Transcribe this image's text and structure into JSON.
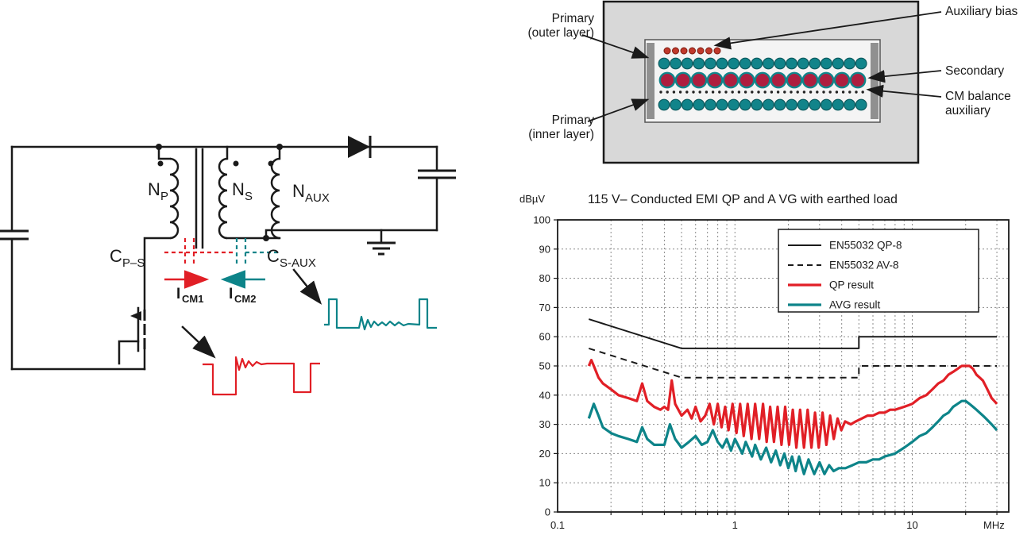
{
  "colors": {
    "red": "#e11f26",
    "teal": "#0d8489",
    "black": "#1a1a1a"
  },
  "circuit": {
    "labels": {
      "np_main": "N",
      "np_sub": "P",
      "ns_main": "N",
      "ns_sub": "S",
      "naux_main": "N",
      "naux_sub": "AUX",
      "cps_main": "C",
      "cps_sub": "P–S",
      "csaux_main": "C",
      "csaux_sub": "S-AUX",
      "icm1_main": "I",
      "icm1_sub": "CM1",
      "icm2_main": "I",
      "icm2_sub": "CM2"
    }
  },
  "winding_diagram": {
    "labels": {
      "primary_outer_1": "Primary",
      "primary_outer_2": "(outer layer)",
      "aux_bias": "Auxiliary bias",
      "secondary": "Secondary",
      "cm_balance_1": "CM balance",
      "cm_balance_2": "auxiliary",
      "primary_inner_1": "Primary",
      "primary_inner_2": "(inner layer)"
    },
    "rows": [
      {
        "name": "aux-bias-winding",
        "y": 64,
        "x0": 210,
        "gap": 10.5,
        "count": 7,
        "r": 4,
        "fill": "#c0392b",
        "stroke": "#7c1d12",
        "stroke_width": 1
      },
      {
        "name": "primary-outer-winding",
        "y": 80,
        "x0": 206,
        "gap": 14.6,
        "count": 18,
        "r": 6.8,
        "fill": "#11848a",
        "stroke": "#0b5a5e",
        "stroke_width": 1.2
      },
      {
        "name": "secondary-winding",
        "y": 101,
        "x0": 210,
        "gap": 20,
        "count": 13,
        "r": 9.2,
        "fill": "#ae1e3f",
        "stroke": "#11848a",
        "stroke_width": 2.4
      },
      {
        "name": "cm-balance-winding",
        "y": 116,
        "x0": 202,
        "gap": 8.2,
        "count": 32,
        "r": 1.7,
        "fill": "#222222",
        "stroke": "none",
        "stroke_width": 0
      },
      {
        "name": "primary-inner-winding",
        "y": 132,
        "x0": 206,
        "gap": 14.6,
        "count": 18,
        "r": 6.8,
        "fill": "#11848a",
        "stroke": "#0b5a5e",
        "stroke_width": 1.2
      }
    ]
  },
  "chart_data": {
    "type": "line",
    "title": "115 V– Conducted EMI QP and A VG with earthed load",
    "ylabel": "dBµV",
    "xlabel_unit": "MHz",
    "x_scale": "log",
    "xlim": [
      0.1,
      35
    ],
    "ylim": [
      0,
      100
    ],
    "grid": true,
    "legend_position": "top-right",
    "yticks": [
      0,
      10,
      20,
      30,
      40,
      50,
      60,
      70,
      80,
      90,
      100
    ],
    "xticks": [
      {
        "value": 0.1,
        "label": "0.1"
      },
      {
        "value": 1,
        "label": "1"
      },
      {
        "value": 10,
        "label": "10"
      }
    ],
    "series": [
      {
        "name": "EN55032 QP-8",
        "color": "#1a1a1a",
        "style": "solid",
        "width": 2,
        "points": [
          [
            0.15,
            66
          ],
          [
            0.5,
            56
          ],
          [
            5,
            56
          ],
          [
            5,
            60
          ],
          [
            30,
            60
          ]
        ]
      },
      {
        "name": "EN55032 AV-8",
        "color": "#1a1a1a",
        "style": "dashed",
        "width": 2,
        "points": [
          [
            0.15,
            56
          ],
          [
            0.5,
            46
          ],
          [
            5,
            46
          ],
          [
            5,
            50
          ],
          [
            30,
            50
          ]
        ]
      },
      {
        "name": "QP result",
        "color": "#e11f26",
        "style": "solid",
        "width": 3.2,
        "points": [
          [
            0.15,
            50
          ],
          [
            0.155,
            52
          ],
          [
            0.16,
            50
          ],
          [
            0.17,
            46
          ],
          [
            0.18,
            44
          ],
          [
            0.2,
            42
          ],
          [
            0.22,
            40
          ],
          [
            0.25,
            39
          ],
          [
            0.28,
            38
          ],
          [
            0.3,
            44
          ],
          [
            0.32,
            38
          ],
          [
            0.35,
            36
          ],
          [
            0.38,
            35
          ],
          [
            0.4,
            36
          ],
          [
            0.42,
            35
          ],
          [
            0.44,
            45
          ],
          [
            0.46,
            37
          ],
          [
            0.5,
            33
          ],
          [
            0.54,
            35
          ],
          [
            0.57,
            32
          ],
          [
            0.6,
            36
          ],
          [
            0.64,
            31
          ],
          [
            0.68,
            33
          ],
          [
            0.72,
            37
          ],
          [
            0.76,
            30
          ],
          [
            0.8,
            37
          ],
          [
            0.84,
            29
          ],
          [
            0.88,
            36
          ],
          [
            0.92,
            28
          ],
          [
            0.97,
            37
          ],
          [
            1.02,
            27
          ],
          [
            1.07,
            37
          ],
          [
            1.12,
            26
          ],
          [
            1.18,
            37
          ],
          [
            1.24,
            25
          ],
          [
            1.3,
            37
          ],
          [
            1.37,
            25
          ],
          [
            1.44,
            37
          ],
          [
            1.51,
            24
          ],
          [
            1.58,
            36
          ],
          [
            1.66,
            24
          ],
          [
            1.74,
            36
          ],
          [
            1.83,
            23
          ],
          [
            1.92,
            36
          ],
          [
            2.02,
            23
          ],
          [
            2.12,
            35
          ],
          [
            2.22,
            22
          ],
          [
            2.33,
            35
          ],
          [
            2.45,
            22
          ],
          [
            2.57,
            35
          ],
          [
            2.7,
            22
          ],
          [
            2.83,
            34
          ],
          [
            2.97,
            22
          ],
          [
            3.12,
            34
          ],
          [
            3.28,
            23
          ],
          [
            3.44,
            33
          ],
          [
            3.61,
            25
          ],
          [
            3.79,
            32
          ],
          [
            3.98,
            28
          ],
          [
            4.18,
            31
          ],
          [
            4.5,
            30
          ],
          [
            4.8,
            31
          ],
          [
            5.2,
            32
          ],
          [
            5.6,
            33
          ],
          [
            6,
            33
          ],
          [
            6.5,
            34
          ],
          [
            7,
            34
          ],
          [
            7.5,
            35
          ],
          [
            8,
            35
          ],
          [
            9,
            36
          ],
          [
            10,
            37
          ],
          [
            11,
            39
          ],
          [
            12,
            40
          ],
          [
            13,
            42
          ],
          [
            14,
            44
          ],
          [
            15,
            45
          ],
          [
            16,
            47
          ],
          [
            17,
            48
          ],
          [
            18,
            49
          ],
          [
            19,
            50
          ],
          [
            20,
            50
          ],
          [
            21,
            50
          ],
          [
            22,
            49
          ],
          [
            23,
            47
          ],
          [
            24,
            46
          ],
          [
            25,
            45
          ],
          [
            26,
            43
          ],
          [
            27,
            41
          ],
          [
            28,
            39
          ],
          [
            29,
            38
          ],
          [
            30,
            37
          ]
        ]
      },
      {
        "name": "AVG result",
        "color": "#0d8489",
        "style": "solid",
        "width": 3.2,
        "points": [
          [
            0.15,
            32
          ],
          [
            0.16,
            37
          ],
          [
            0.17,
            33
          ],
          [
            0.18,
            29
          ],
          [
            0.2,
            27
          ],
          [
            0.22,
            26
          ],
          [
            0.25,
            25
          ],
          [
            0.28,
            24
          ],
          [
            0.3,
            29
          ],
          [
            0.32,
            25
          ],
          [
            0.35,
            23
          ],
          [
            0.4,
            23
          ],
          [
            0.43,
            30
          ],
          [
            0.46,
            25
          ],
          [
            0.5,
            22
          ],
          [
            0.55,
            24
          ],
          [
            0.6,
            26
          ],
          [
            0.65,
            23
          ],
          [
            0.7,
            24
          ],
          [
            0.75,
            28
          ],
          [
            0.8,
            24
          ],
          [
            0.85,
            22
          ],
          [
            0.9,
            25
          ],
          [
            0.95,
            21
          ],
          [
            1,
            25
          ],
          [
            1.1,
            20
          ],
          [
            1.15,
            24
          ],
          [
            1.25,
            19
          ],
          [
            1.3,
            23
          ],
          [
            1.4,
            18
          ],
          [
            1.5,
            22
          ],
          [
            1.6,
            17
          ],
          [
            1.7,
            21
          ],
          [
            1.8,
            16
          ],
          [
            1.9,
            20
          ],
          [
            2,
            15
          ],
          [
            2.1,
            19
          ],
          [
            2.2,
            14
          ],
          [
            2.3,
            19
          ],
          [
            2.45,
            13
          ],
          [
            2.6,
            18
          ],
          [
            2.8,
            13
          ],
          [
            3,
            17
          ],
          [
            3.2,
            13
          ],
          [
            3.4,
            16
          ],
          [
            3.6,
            14
          ],
          [
            3.85,
            15
          ],
          [
            4.2,
            15
          ],
          [
            4.6,
            16
          ],
          [
            5,
            17
          ],
          [
            5.5,
            17
          ],
          [
            6,
            18
          ],
          [
            6.5,
            18
          ],
          [
            7,
            19
          ],
          [
            8,
            20
          ],
          [
            9,
            22
          ],
          [
            10,
            24
          ],
          [
            11,
            26
          ],
          [
            12,
            27
          ],
          [
            13,
            29
          ],
          [
            14,
            31
          ],
          [
            15,
            33
          ],
          [
            16,
            34
          ],
          [
            17,
            36
          ],
          [
            18,
            37
          ],
          [
            19,
            38
          ],
          [
            20,
            38
          ],
          [
            21,
            37
          ],
          [
            22,
            36
          ],
          [
            23,
            35
          ],
          [
            24,
            34
          ],
          [
            25,
            33
          ],
          [
            26,
            32
          ],
          [
            27,
            31
          ],
          [
            28,
            30
          ],
          [
            29,
            29
          ],
          [
            30,
            28
          ]
        ]
      }
    ]
  }
}
